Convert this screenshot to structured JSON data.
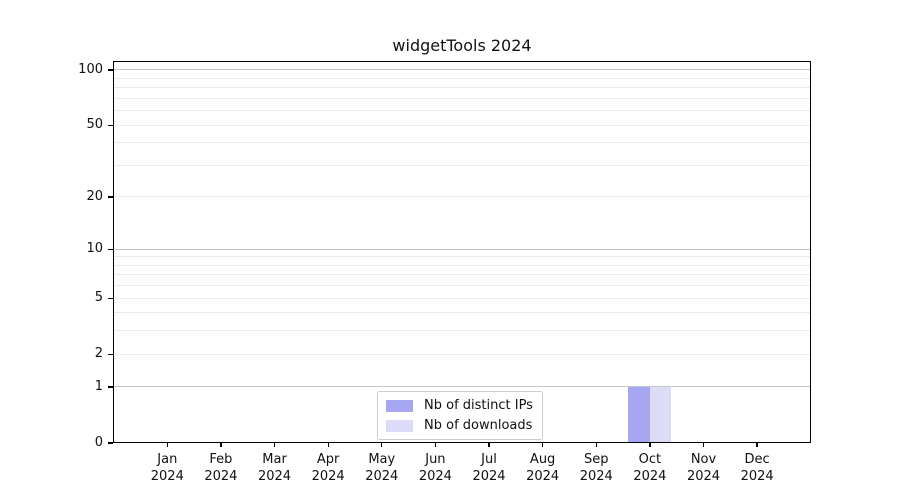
{
  "title": "widgetTools 2024",
  "chart_data": {
    "type": "bar",
    "title": "widgetTools 2024",
    "categories": [
      "Jan",
      "Feb",
      "Mar",
      "Apr",
      "May",
      "Jun",
      "Jul",
      "Aug",
      "Sep",
      "Oct",
      "Nov",
      "Dec"
    ],
    "category_year": "2024",
    "series": [
      {
        "name": "Nb of distinct IPs",
        "color": "#a6a6f2",
        "values": [
          0,
          0,
          0,
          0,
          0,
          0,
          0,
          0,
          0,
          1,
          0,
          0
        ]
      },
      {
        "name": "Nb of downloads",
        "color": "#dcdcf8",
        "values": [
          0,
          0,
          0,
          0,
          0,
          0,
          0,
          0,
          0,
          1,
          0,
          0
        ]
      }
    ],
    "y_axis": {
      "scale": "log1p",
      "tick_labels": [
        0,
        1,
        2,
        5,
        10,
        20,
        50,
        100
      ],
      "major_gridlines": [
        1,
        10,
        100
      ],
      "minor_gridlines": [
        2,
        3,
        4,
        5,
        6,
        7,
        8,
        9,
        20,
        30,
        40,
        50,
        60,
        70,
        80,
        90
      ],
      "ylim": [
        0,
        112
      ]
    },
    "legend": {
      "position": "lower center",
      "entries": [
        "Nb of distinct IPs",
        "Nb of downloads"
      ]
    },
    "grid": "on"
  }
}
